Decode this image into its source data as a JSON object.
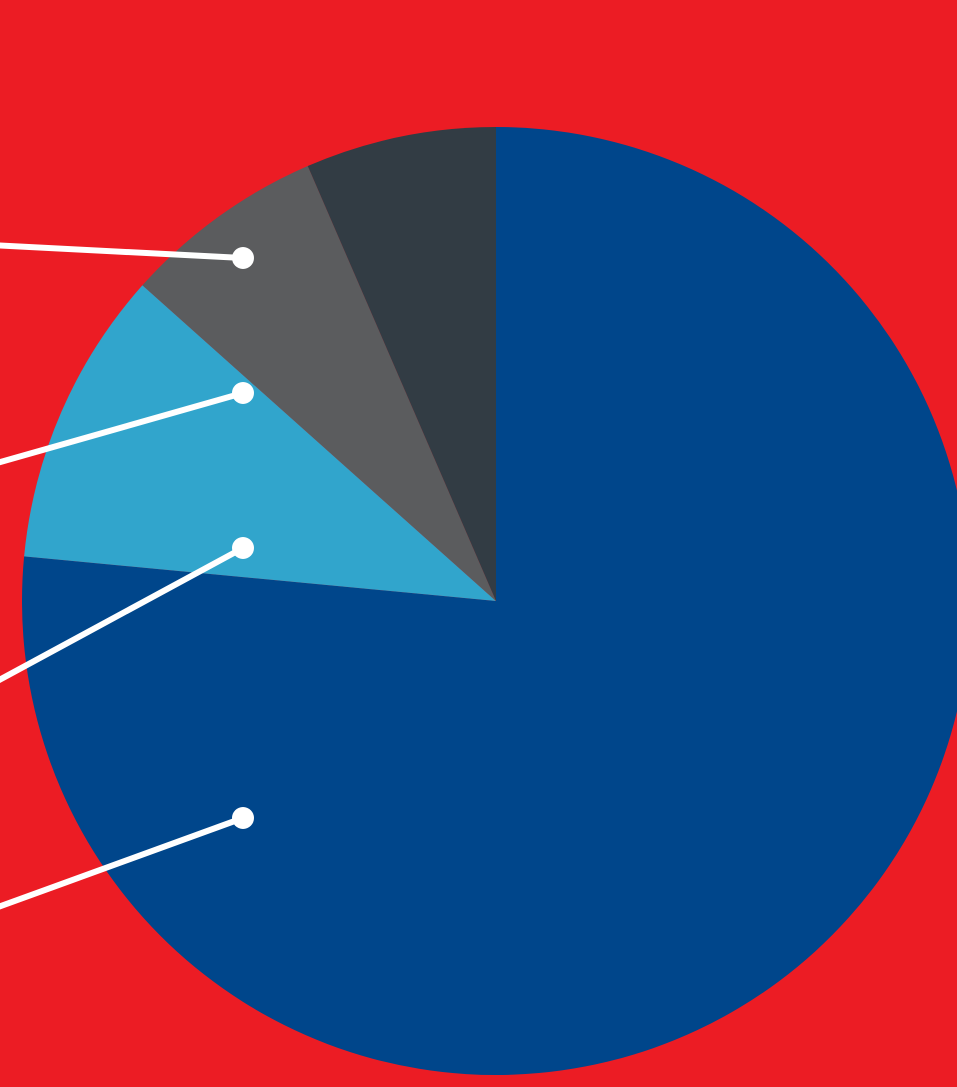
{
  "chart_data": {
    "type": "pie",
    "title": "",
    "start": "top",
    "direction": "clockwise",
    "labels_visible": false,
    "slices": [
      {
        "value": 76.5,
        "color": "#00468b"
      },
      {
        "value": 10.1,
        "color": "#31a5cc"
      },
      {
        "value": 6.9,
        "color": "#5b5c5e"
      },
      {
        "value": 6.5,
        "color": "#323c44"
      }
    ]
  },
  "colors": {
    "background": "#ec1c24",
    "leader_line": "#ffffff"
  }
}
